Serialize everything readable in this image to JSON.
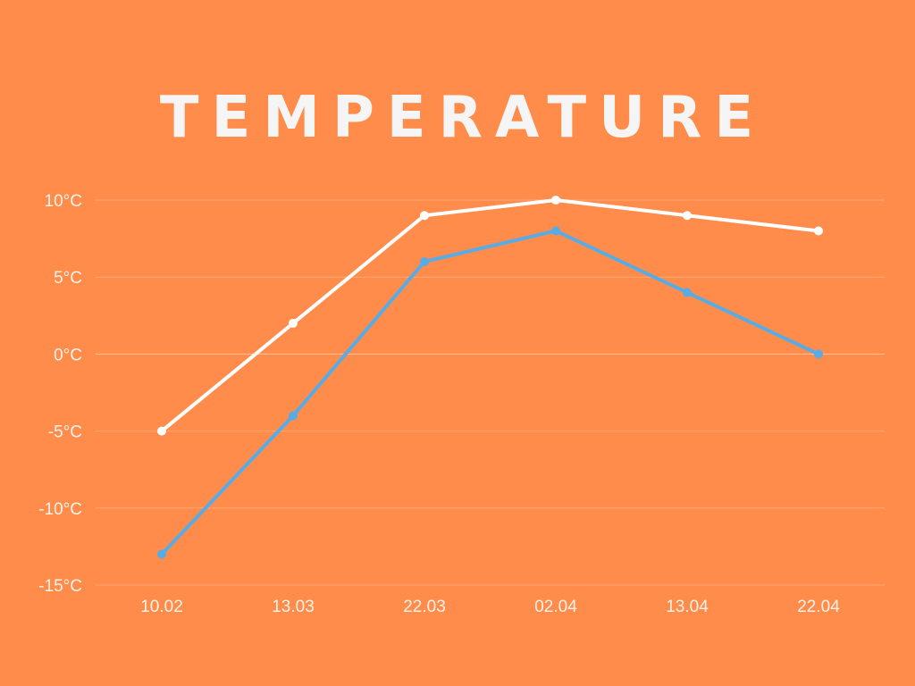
{
  "chart_data": {
    "type": "line",
    "title": "TEMPERATURE",
    "categories": [
      "10.02",
      "13.03",
      "22.03",
      "02.04",
      "13.04",
      "22.04"
    ],
    "series": [
      {
        "values": [
          -5,
          2,
          9,
          10,
          9,
          8
        ],
        "color": "#FFFFFF"
      },
      {
        "values": [
          -13,
          -4,
          6,
          8,
          4,
          0
        ],
        "color": "#58ACE5"
      }
    ],
    "ylim": [
      -15,
      10
    ],
    "yticks": [
      "10°C",
      "5°C",
      "0°C",
      "-5°C",
      "-10°C",
      "-15°C"
    ],
    "ytick_values": [
      10,
      5,
      0,
      -5,
      -10,
      -15
    ],
    "grid": true,
    "legend": "none"
  },
  "colors": {
    "background": "#FF8C4B",
    "title": "#F5F5F5",
    "gridline": "#FFA874",
    "zeroline": "#FFC29D",
    "tick_label": "#FFF2E8"
  }
}
